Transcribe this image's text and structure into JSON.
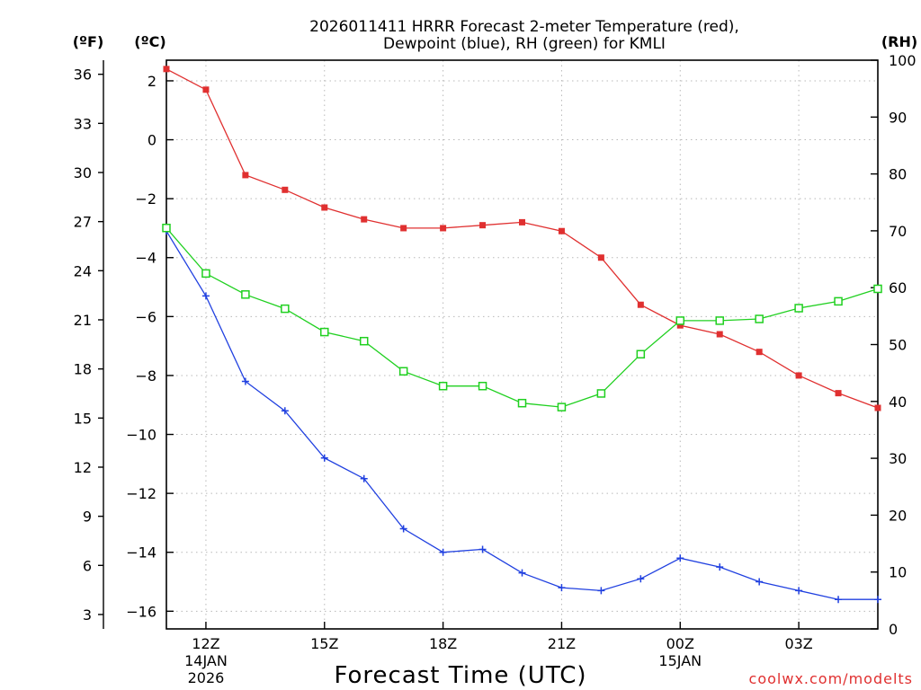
{
  "chart_data": {
    "type": "line",
    "title_line1": "2026011411 HRRR Forecast 2-meter Temperature (red),",
    "title_line2": "Dewpoint (blue), RH (green) for KMLI",
    "xlabel": "Forecast Time (UTC)",
    "credit": "coolwx.com/modelts",
    "units": {
      "f": "(ºF)",
      "c": "(ºC)",
      "rh": "(RH)"
    },
    "x_hours": [
      11,
      12,
      13,
      14,
      15,
      16,
      17,
      18,
      19,
      20,
      21,
      22,
      23,
      24,
      25,
      26,
      27,
      28,
      29
    ],
    "xlim": [
      11,
      29
    ],
    "x_ticks": [
      {
        "hour": 12,
        "l1": "12Z",
        "l2": "14JAN",
        "l3": "2026"
      },
      {
        "hour": 15,
        "l1": "15Z",
        "l2": "",
        "l3": ""
      },
      {
        "hour": 18,
        "l1": "18Z",
        "l2": "",
        "l3": ""
      },
      {
        "hour": 21,
        "l1": "21Z",
        "l2": "",
        "l3": ""
      },
      {
        "hour": 24,
        "l1": "00Z",
        "l2": "15JAN",
        "l3": ""
      },
      {
        "hour": 27,
        "l1": "03Z",
        "l2": "",
        "l3": ""
      }
    ],
    "ylim_c": [
      -16.6,
      2.7
    ],
    "y_ticks_c": [
      "2",
      "0",
      "−2",
      "−4",
      "−6",
      "−8",
      "−10",
      "−12",
      "−14",
      "−16"
    ],
    "y_ticks_f": [
      "36",
      "33",
      "30",
      "27",
      "24",
      "21",
      "18",
      "15",
      "12",
      "9",
      "6",
      "3"
    ],
    "ylim_rh": [
      0,
      100
    ],
    "y_ticks_rh": [
      "100",
      "90",
      "80",
      "70",
      "60",
      "50",
      "40",
      "30",
      "20",
      "10",
      "0"
    ],
    "series": [
      {
        "name": "Temperature",
        "units": "C",
        "color": "#e03030",
        "marker": "filled-square",
        "values": [
          2.4,
          1.7,
          -1.2,
          -1.7,
          -2.3,
          -2.7,
          -3.0,
          -3.0,
          -2.9,
          -2.8,
          -3.1,
          -4.0,
          -5.6,
          -6.3,
          -6.6,
          -7.2,
          -8.0,
          -8.6,
          -9.1
        ]
      },
      {
        "name": "Dewpoint",
        "units": "C",
        "color": "#2040e0",
        "marker": "plus",
        "values": [
          -3.1,
          -5.3,
          -8.2,
          -9.2,
          -10.8,
          -11.5,
          -13.2,
          -14.0,
          -13.9,
          -14.7,
          -15.2,
          -15.3,
          -14.9,
          -14.2,
          -14.5,
          -15.0,
          -15.3,
          -15.6,
          -15.6
        ]
      },
      {
        "name": "RH",
        "units": "%",
        "color": "#20d020",
        "marker": "open-square",
        "values": [
          70.5,
          62.5,
          58.8,
          56.3,
          52.2,
          50.6,
          45.3,
          42.7,
          42.7,
          39.7,
          39.0,
          41.4,
          48.3,
          54.2,
          54.2,
          54.5,
          56.4,
          57.6,
          59.8
        ]
      }
    ]
  }
}
